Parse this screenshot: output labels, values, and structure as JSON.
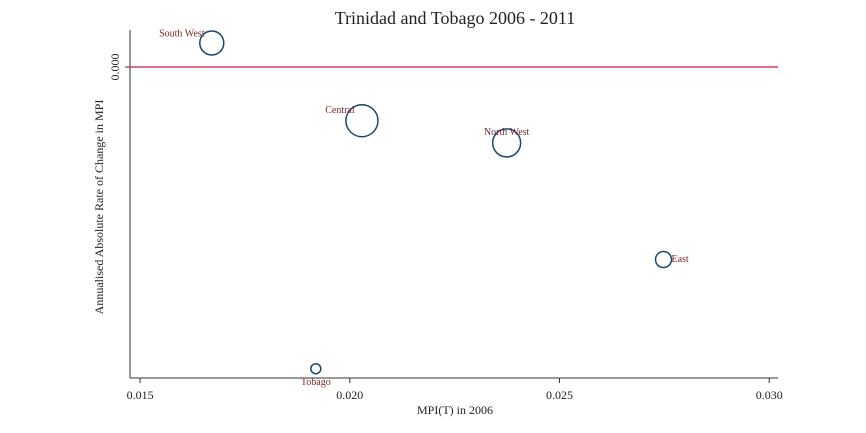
{
  "chart_data": {
    "type": "scatter",
    "title": "Trinidad and Tobago 2006 - 2011",
    "xlabel": "MPI(T) in 2006",
    "ylabel": "Annualised Absolute Rate of Change in MPI",
    "labels": [
      "South West",
      "Central",
      "North West",
      "East",
      "Tobago"
    ],
    "x": [
      0.01671,
      0.02029,
      0.02374,
      0.02748,
      0.01919
    ],
    "y": [
      0.00013,
      -0.00029,
      -0.00041,
      -0.00104,
      -0.00163
    ],
    "sizes": [
      144,
      256,
      196,
      64,
      25
    ],
    "color": "#1a476f",
    "label_color": "#7a2b2b",
    "hline": 0,
    "hline_color": "#d0455a",
    "xlim": [
      0.01476,
      0.03021
    ],
    "ylim": [
      -0.00168,
      0.0002
    ],
    "xticks": [
      0.015,
      {
        "value": 0.02,
        "label": "0.020"
      },
      0.025,
      {
        "value": 0.03,
        "label": "0.030"
      }
    ],
    "yticks": [
      {
        "value": 0,
        "label": "0.000"
      }
    ]
  }
}
